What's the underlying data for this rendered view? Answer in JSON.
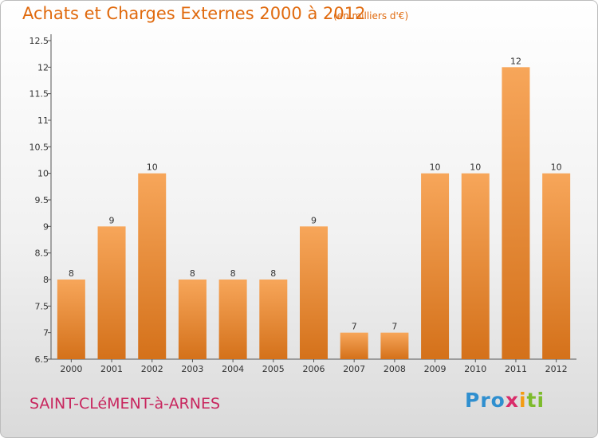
{
  "header": {
    "title": "Achats et Charges Externes 2000 à 2012",
    "unit": "(en milliers d'€)"
  },
  "footer": {
    "commune": "SAINT-CLéMENT-à-ARNES",
    "logo": [
      "Pro",
      "x",
      "i",
      "ti"
    ]
  },
  "colors": {
    "title": "#e06a0e",
    "commune": "#c8265e",
    "bar_light": "#f7a65a",
    "bar_dark": "#d4711a"
  },
  "chart_data": {
    "type": "bar",
    "title": "Achats et Charges Externes 2000 à 2012",
    "subtitle": "(en milliers d'€)",
    "categories": [
      "2000",
      "2001",
      "2002",
      "2003",
      "2004",
      "2005",
      "2006",
      "2007",
      "2008",
      "2009",
      "2010",
      "2011",
      "2012"
    ],
    "values": [
      8,
      9,
      10,
      8,
      8,
      8,
      9,
      7,
      7,
      10,
      10,
      12,
      10
    ],
    "ylim": [
      6.5,
      12.5
    ],
    "yticks": [
      "6.5",
      "7",
      "7.5",
      "8",
      "8.5",
      "9",
      "9.5",
      "10",
      "10.5",
      "11",
      "11.5",
      "12",
      "12.5"
    ],
    "grid": false,
    "legend": "none"
  }
}
